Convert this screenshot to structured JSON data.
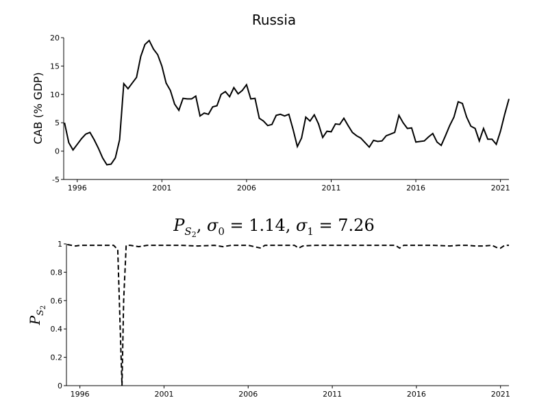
{
  "chart_data": [
    {
      "type": "line",
      "title": "Russia",
      "xlabel": "",
      "ylabel": "CAB (% GDP)",
      "xlim": [
        1995.2,
        2021.5
      ],
      "ylim": [
        -5,
        20
      ],
      "x_ticks": [
        1996,
        2001,
        2006,
        2011,
        2016,
        2021
      ],
      "x_tick_labels": [
        "1996",
        "2001",
        "2006",
        "2011",
        "2016",
        "2021"
      ],
      "y_ticks": [
        -5,
        0,
        5,
        10,
        15,
        20
      ],
      "y_tick_labels": [
        "-5",
        "0",
        "5",
        "10",
        "15",
        "20"
      ],
      "grid": false,
      "series": [
        {
          "line_style": "solid",
          "color": "#000000",
          "x": [
            1995.25,
            1995.5,
            1995.75,
            1996.0,
            1996.25,
            1996.5,
            1996.75,
            1997.0,
            1997.25,
            1997.5,
            1997.75,
            1998.0,
            1998.25,
            1998.5,
            1998.75,
            1999.0,
            1999.25,
            1999.5,
            1999.75,
            2000.0,
            2000.25,
            2000.5,
            2000.75,
            2001.0,
            2001.25,
            2001.5,
            2001.75,
            2002.0,
            2002.25,
            2002.5,
            2002.75,
            2003.0,
            2003.25,
            2003.5,
            2003.75,
            2004.0,
            2004.25,
            2004.5,
            2004.75,
            2005.0,
            2005.25,
            2005.5,
            2005.75,
            2006.0,
            2006.25,
            2006.5,
            2006.75,
            2007.0,
            2007.25,
            2007.5,
            2007.75,
            2008.0,
            2008.25,
            2008.5,
            2008.75,
            2009.0,
            2009.25,
            2009.5,
            2009.75,
            2010.0,
            2010.25,
            2010.5,
            2010.75,
            2011.0,
            2011.25,
            2011.5,
            2011.75,
            2012.0,
            2012.25,
            2012.5,
            2012.75,
            2013.0,
            2013.25,
            2013.5,
            2013.75,
            2014.0,
            2014.25,
            2014.5,
            2014.75,
            2015.0,
            2015.25,
            2015.5,
            2015.75,
            2016.0,
            2016.25,
            2016.5,
            2016.75,
            2017.0,
            2017.25,
            2017.5,
            2017.75,
            2018.0,
            2018.25,
            2018.5,
            2018.75,
            2019.0,
            2019.25,
            2019.5,
            2019.75,
            2020.0,
            2020.25,
            2020.5,
            2020.75,
            2021.0,
            2021.25,
            2021.5
          ],
          "y": [
            5.0,
            1.5,
            0.2,
            1.2,
            2.2,
            3.0,
            3.3,
            2.0,
            0.5,
            -1.2,
            -2.4,
            -2.3,
            -1.2,
            2.0,
            11.9,
            11.0,
            12.0,
            13.0,
            16.7,
            18.8,
            19.5,
            18.0,
            17.0,
            15.0,
            12.0,
            10.7,
            8.3,
            7.2,
            9.3,
            9.2,
            9.2,
            9.7,
            6.2,
            6.7,
            6.5,
            7.8,
            8.0,
            10.0,
            10.5,
            9.6,
            11.2,
            10.1,
            10.7,
            11.7,
            9.2,
            9.3,
            5.8,
            5.3,
            4.5,
            4.7,
            6.3,
            6.5,
            6.2,
            6.5,
            3.8,
            0.8,
            2.3,
            6.0,
            5.3,
            6.4,
            4.8,
            2.4,
            3.5,
            3.4,
            4.8,
            4.7,
            5.8,
            4.5,
            3.3,
            2.7,
            2.3,
            1.5,
            0.7,
            1.9,
            1.7,
            1.8,
            2.7,
            3.0,
            3.3,
            6.3,
            5.0,
            4.0,
            4.1,
            1.6,
            1.7,
            1.8,
            2.5,
            3.1,
            1.6,
            1.0,
            2.7,
            4.5,
            6.0,
            8.7,
            8.4,
            6.0,
            4.4,
            4.0,
            1.8,
            4.0,
            2.1,
            2.1,
            1.2,
            3.5,
            6.5,
            9.2
          ]
        }
      ]
    },
    {
      "type": "line",
      "title": "P_{S_2}, σ_0 = 1.14, σ_1 = 7.26",
      "xlabel": "",
      "ylabel": "P_{S_2}",
      "xlim": [
        1995.2,
        2021.5
      ],
      "ylim": [
        0,
        1
      ],
      "x_ticks": [
        1996,
        2001,
        2006,
        2011,
        2016,
        2021
      ],
      "x_tick_labels": [
        "1996",
        "2001",
        "2006",
        "2011",
        "2016",
        "2021"
      ],
      "y_ticks": [
        0,
        0.2,
        0.4,
        0.6,
        0.8,
        1
      ],
      "y_tick_labels": [
        "0",
        "0.2",
        "0.4",
        "0.6",
        "0.8",
        "1"
      ],
      "grid": false,
      "series": [
        {
          "line_style": "dashed",
          "color": "#000000",
          "x": [
            1995.25,
            1995.5,
            1995.75,
            1996.0,
            1996.5,
            1997.0,
            1997.5,
            1998.0,
            1998.25,
            1998.5,
            1998.6,
            1998.75,
            1999.0,
            1999.5,
            2000.0,
            2001.0,
            2002.0,
            2003.0,
            2004.0,
            2004.5,
            2005.0,
            2006.0,
            2006.75,
            2007.0,
            2008.0,
            2008.75,
            2009.0,
            2009.25,
            2010.0,
            2011.0,
            2012.0,
            2013.0,
            2014.0,
            2014.75,
            2015.0,
            2015.25,
            2015.5,
            2016.0,
            2017.0,
            2018.0,
            2018.5,
            2019.0,
            2019.5,
            2020.0,
            2020.5,
            2020.75,
            2021.0,
            2021.25,
            2021.5
          ],
          "y": [
            0.995,
            0.99,
            0.985,
            0.99,
            0.99,
            0.99,
            0.99,
            0.99,
            0.96,
            0.0,
            0.6,
            0.99,
            0.99,
            0.98,
            0.99,
            0.99,
            0.99,
            0.985,
            0.99,
            0.98,
            0.99,
            0.99,
            0.97,
            0.99,
            0.99,
            0.99,
            0.97,
            0.985,
            0.99,
            0.99,
            0.99,
            0.99,
            0.99,
            0.99,
            0.97,
            0.99,
            0.99,
            0.99,
            0.99,
            0.985,
            0.99,
            0.99,
            0.985,
            0.985,
            0.99,
            0.975,
            0.97,
            0.99,
            0.99
          ]
        }
      ]
    }
  ]
}
